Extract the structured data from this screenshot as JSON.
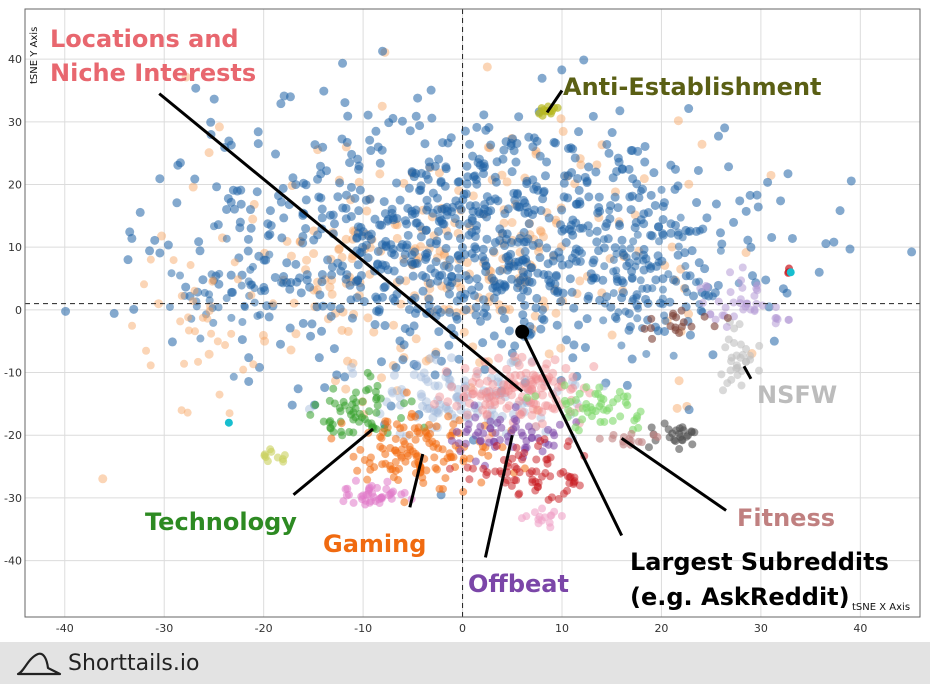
{
  "chart_data": {
    "type": "scatter",
    "xlabel": "tSNE X Axis",
    "ylabel": "tSNE Y Axis",
    "xlim": [
      -44,
      46
    ],
    "ylim": [
      -49,
      48
    ],
    "x_ticks": [
      -40,
      -30,
      -20,
      -10,
      0,
      10,
      20,
      30,
      40
    ],
    "y_ticks": [
      -40,
      -30,
      -20,
      -10,
      0,
      10,
      20,
      30,
      40
    ],
    "grid": true,
    "reference_lines": {
      "x": 0,
      "y": 1
    },
    "clusters": [
      {
        "name": "Locations and Niche Interests",
        "color": "#e8676f",
        "pointer": {
          "from": [
            -30.5,
            34.5
          ],
          "to": [
            6,
            -13
          ]
        }
      },
      {
        "name": "Anti-Establishment",
        "color": "#5a5f14",
        "pointer": {
          "from": [
            10,
            35
          ],
          "to": [
            8.5,
            31.5
          ]
        }
      },
      {
        "name": "NSFW",
        "color": "#bcbcbc",
        "pointer": {
          "from": [
            29,
            -11
          ],
          "to": [
            28.3,
            -9
          ]
        }
      },
      {
        "name": "Technology",
        "color": "#2d8a22",
        "pointer": {
          "from": [
            -17,
            -29.5
          ],
          "to": [
            -9,
            -19
          ]
        }
      },
      {
        "name": "Gaming",
        "color": "#f06a10",
        "pointer": {
          "from": [
            -5.3,
            -31.5
          ],
          "to": [
            -4,
            -23
          ]
        }
      },
      {
        "name": "Offbeat",
        "color": "#7b46a8",
        "pointer": {
          "from": [
            2.3,
            -39.5
          ],
          "to": [
            5,
            -20
          ]
        }
      },
      {
        "name": "Fitness",
        "color": "#c08080",
        "pointer": {
          "from": [
            26.5,
            -32
          ],
          "to": [
            16,
            -20.5
          ]
        }
      },
      {
        "name": "Largest Subreddits (e.g. AskReddit)",
        "color": "#000000",
        "pointer": {
          "from": [
            16,
            -36
          ],
          "to": [
            6,
            -3.5
          ]
        }
      }
    ]
  },
  "labels": {
    "locations_line1": "Locations and",
    "locations_line2": "Niche Interests",
    "anti_establishment": "Anti-Establishment",
    "nsfw": "NSFW",
    "technology": "Technology",
    "gaming": "Gaming",
    "offbeat": "Offbeat",
    "fitness": "Fitness",
    "largest_line1": "Largest Subreddits",
    "largest_line2": "(e.g. AskReddit)"
  },
  "footer": {
    "brand": "Shorttails.io",
    "logo_icon": "hat-logo-icon"
  }
}
